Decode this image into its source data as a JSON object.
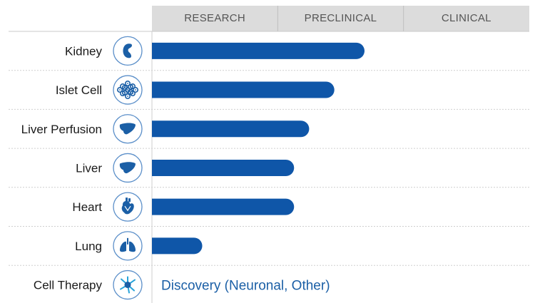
{
  "chart_data": {
    "type": "bar",
    "orientation": "horizontal",
    "stages": [
      "RESEARCH",
      "PRECLINICAL",
      "CLINICAL"
    ],
    "xlim": [
      0,
      3
    ],
    "categories": [
      "Kidney",
      "Islet Cell",
      "Liver Perfusion",
      "Liver",
      "Heart",
      "Lung",
      "Cell Therapy"
    ],
    "values": [
      1.69,
      1.45,
      1.25,
      1.13,
      1.13,
      0.4,
      null
    ],
    "icons": [
      "kidney-icon",
      "islet-cell-icon",
      "liver-icon",
      "liver-icon",
      "heart-icon",
      "lung-icon",
      "neuron-icon"
    ],
    "annotations": [
      {
        "category": "Cell Therapy",
        "text": "Discovery (Neuronal, Other)"
      }
    ],
    "colors": {
      "bar": "#0f56a8",
      "header_bg": "#dcdcdc",
      "icon": "#1b5fa6",
      "icon_ring": "#5b8fc9",
      "annotation_text": "#1b5fa6"
    }
  }
}
